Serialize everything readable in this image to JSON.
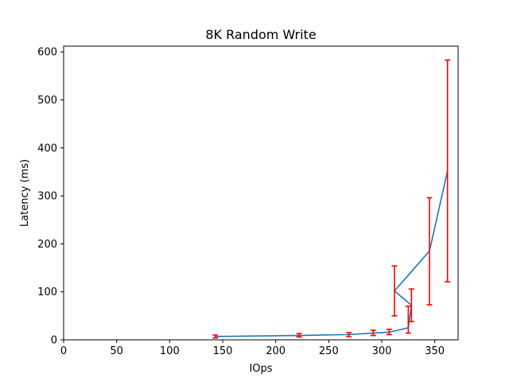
{
  "chart_data": {
    "type": "line",
    "title": "8K  Random Write",
    "xlabel": "IOps",
    "ylabel": "Latency (ms)",
    "xlim": [
      0,
      372
    ],
    "ylim": [
      0,
      612
    ],
    "xticks": [
      0,
      50,
      100,
      150,
      200,
      250,
      300,
      350
    ],
    "yticks": [
      0,
      100,
      200,
      300,
      400,
      500,
      600
    ],
    "grid": false,
    "series": [
      {
        "color": "#1f77b4",
        "points": [
          {
            "x": 143,
            "y": 7,
            "err_low": 4,
            "err_high": 10
          },
          {
            "x": 222,
            "y": 9,
            "err_low": 6,
            "err_high": 13
          },
          {
            "x": 269,
            "y": 11,
            "err_low": 7,
            "err_high": 15
          },
          {
            "x": 292,
            "y": 14,
            "err_low": 9,
            "err_high": 20
          },
          {
            "x": 307,
            "y": 16,
            "err_low": 11,
            "err_high": 22
          },
          {
            "x": 325,
            "y": 25,
            "err_low": 14,
            "err_high": 70
          },
          {
            "x": 328,
            "y": 72,
            "err_low": 38,
            "err_high": 106
          },
          {
            "x": 312,
            "y": 102,
            "err_low": 50,
            "err_high": 154
          },
          {
            "x": 345,
            "y": 185,
            "err_low": 73,
            "err_high": 296
          },
          {
            "x": 362,
            "y": 352,
            "err_low": 121,
            "err_high": 583
          }
        ]
      }
    ],
    "errorbar_color": "#ff0000"
  }
}
